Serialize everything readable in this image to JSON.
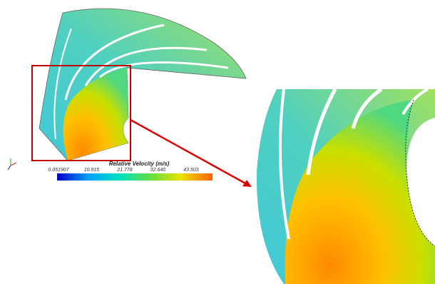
{
  "colorbar": {
    "title": "Relative Velocity (m/s)",
    "tick_labels": [
      "0.051907",
      "10.915",
      "21.778",
      "32.640",
      "43.503"
    ]
  }
}
